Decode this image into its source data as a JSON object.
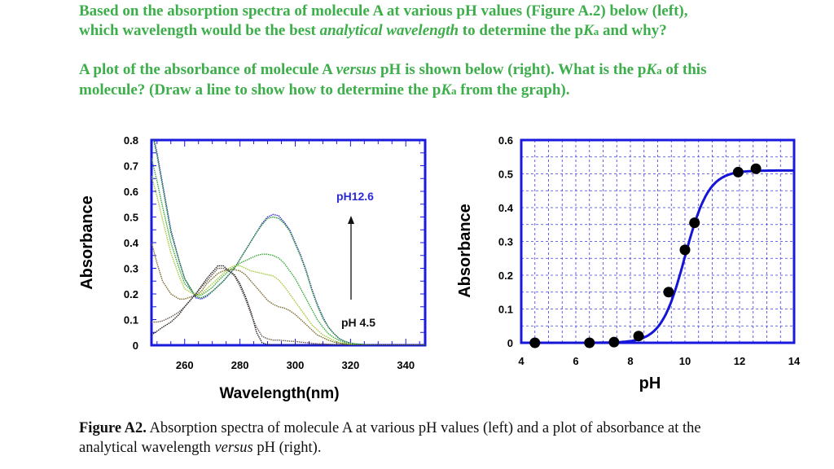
{
  "question": {
    "p1": {
      "a": "Based on the absorption spectra of molecule A at various pH values (Figure A.2) below (left),",
      "b": "which wavelength would be the best ",
      "b_italic": "analytical wavelength",
      "c": " to determine the p",
      "K": "K",
      "a_sub": "a",
      "d": " and why?"
    },
    "p2": {
      "a": "A plot of the absorbance of molecule A ",
      "a_italic": "versus",
      "b": " pH is shown below (right). What is the p",
      "K": "K",
      "a_sub": "a",
      "c": " of this",
      "d": "molecule? (Draw a line to show how to determine the p",
      "K2": "K",
      "a_sub2": "a",
      "e": " from the graph)."
    }
  },
  "caption": {
    "label": "Figure A2.",
    "text1": " Absorption spectra of molecule A at various pH values (left) and a plot of absorbance at the",
    "text2": "analytical wavelength ",
    "italic": "versus",
    "text3": " pH (right)."
  },
  "chart_data": [
    {
      "type": "line",
      "xlabel": "Wavelength(nm)",
      "ylabel": "Absorbance",
      "xlim": [
        248,
        347
      ],
      "ylim": [
        0,
        0.8
      ],
      "xticks": [
        260,
        280,
        300,
        320,
        340
      ],
      "yticks": [
        0,
        0.1,
        0.2,
        0.3,
        0.4,
        0.5,
        0.6,
        0.7,
        0.8
      ],
      "frame_color": "#1a1adf",
      "annotations": {
        "top": "pH12.6",
        "bottom": "pH 4.5",
        "arrow": "up"
      },
      "x": [
        248,
        250,
        252,
        255,
        258,
        260,
        264,
        266,
        268,
        270,
        272,
        274,
        276,
        278,
        280,
        282,
        284,
        286,
        288,
        290,
        292,
        294,
        296,
        298,
        300,
        302,
        304,
        306,
        308,
        310,
        312,
        314,
        316,
        318,
        320,
        322,
        326,
        330,
        340,
        347
      ],
      "series": [
        {
          "color": "#2a2ad8",
          "values": [
            0.85,
            0.75,
            0.63,
            0.45,
            0.33,
            0.26,
            0.185,
            0.18,
            0.19,
            0.21,
            0.23,
            0.25,
            0.275,
            0.3,
            0.335,
            0.37,
            0.405,
            0.44,
            0.475,
            0.5,
            0.51,
            0.505,
            0.48,
            0.45,
            0.4,
            0.35,
            0.29,
            0.22,
            0.16,
            0.11,
            0.07,
            0.045,
            0.025,
            0.015,
            0.008,
            0.005,
            0.002,
            0,
            0,
            0
          ]
        },
        {
          "color": "#1e8a2a",
          "values": [
            0.84,
            0.74,
            0.62,
            0.44,
            0.33,
            0.26,
            0.19,
            0.185,
            0.195,
            0.21,
            0.23,
            0.25,
            0.275,
            0.3,
            0.335,
            0.37,
            0.405,
            0.44,
            0.47,
            0.495,
            0.5,
            0.495,
            0.475,
            0.445,
            0.395,
            0.345,
            0.285,
            0.215,
            0.155,
            0.105,
            0.07,
            0.045,
            0.025,
            0.015,
            0.008,
            0.005,
            0.002,
            0,
            0,
            0
          ]
        },
        {
          "color": "#39a83a",
          "values": [
            0.73,
            0.64,
            0.54,
            0.4,
            0.3,
            0.24,
            0.195,
            0.195,
            0.21,
            0.225,
            0.25,
            0.27,
            0.29,
            0.305,
            0.32,
            0.33,
            0.34,
            0.35,
            0.355,
            0.355,
            0.35,
            0.34,
            0.32,
            0.29,
            0.26,
            0.22,
            0.18,
            0.14,
            0.1,
            0.07,
            0.045,
            0.03,
            0.018,
            0.01,
            0.005,
            0.002,
            0,
            0,
            0,
            0
          ]
        },
        {
          "color": "#a6c93a",
          "values": [
            0.66,
            0.58,
            0.49,
            0.36,
            0.27,
            0.22,
            0.195,
            0.2,
            0.22,
            0.24,
            0.26,
            0.28,
            0.3,
            0.31,
            0.31,
            0.3,
            0.29,
            0.285,
            0.28,
            0.275,
            0.27,
            0.255,
            0.23,
            0.2,
            0.17,
            0.14,
            0.11,
            0.08,
            0.06,
            0.04,
            0.03,
            0.018,
            0.01,
            0.006,
            0.003,
            0.001,
            0,
            0,
            0,
            0
          ]
        },
        {
          "color": "#7a6a2a",
          "values": [
            0.4,
            0.32,
            0.25,
            0.2,
            0.18,
            0.18,
            0.195,
            0.21,
            0.24,
            0.26,
            0.28,
            0.29,
            0.295,
            0.295,
            0.29,
            0.275,
            0.25,
            0.225,
            0.2,
            0.175,
            0.16,
            0.15,
            0.145,
            0.135,
            0.12,
            0.1,
            0.08,
            0.06,
            0.04,
            0.03,
            0.02,
            0.012,
            0.008,
            0.005,
            0.002,
            0,
            0,
            0,
            0,
            0
          ]
        },
        {
          "color": "#6b5a50",
          "values": [
            0.09,
            0.09,
            0.095,
            0.11,
            0.13,
            0.15,
            0.2,
            0.225,
            0.25,
            0.275,
            0.3,
            0.3,
            0.29,
            0.27,
            0.23,
            0.18,
            0.12,
            0.07,
            0.035,
            0.025,
            0.02,
            0.02,
            0.018,
            0.016,
            0.015,
            0.012,
            0.01,
            0.008,
            0.006,
            0.005,
            0.004,
            0.003,
            0.002,
            0.001,
            0,
            0,
            0,
            0,
            0,
            0
          ]
        },
        {
          "color": "#222222",
          "values": [
            0.04,
            0.055,
            0.07,
            0.09,
            0.12,
            0.15,
            0.2,
            0.23,
            0.26,
            0.285,
            0.31,
            0.31,
            0.29,
            0.275,
            0.24,
            0.19,
            0.13,
            0.05,
            0.01,
            0.002,
            0,
            0,
            0,
            0,
            0,
            0,
            0,
            0,
            0,
            0,
            0,
            0,
            0,
            0,
            0,
            0,
            0,
            0,
            0,
            0
          ]
        }
      ]
    },
    {
      "type": "scatter",
      "xlabel": "pH",
      "ylabel": "Absorbance",
      "xlim": [
        4,
        14
      ],
      "ylim": [
        0,
        0.6
      ],
      "xticks": [
        4,
        6,
        8,
        10,
        12,
        14
      ],
      "yticks": [
        0,
        0.1,
        0.2,
        0.3,
        0.4,
        0.5,
        0.6
      ],
      "grid": true,
      "frame_color": "#1a1adf",
      "points": {
        "x": [
          4.5,
          6.5,
          7.4,
          8.3,
          9.4,
          10.0,
          10.35,
          11.95,
          12.6
        ],
        "y": [
          0,
          0,
          0.002,
          0.02,
          0.15,
          0.275,
          0.355,
          0.505,
          0.515
        ]
      },
      "fit": {
        "type": "sigmoid",
        "color": "#1515d8",
        "pKa": 10.0,
        "max": 0.51,
        "min": 0.0
      }
    }
  ]
}
